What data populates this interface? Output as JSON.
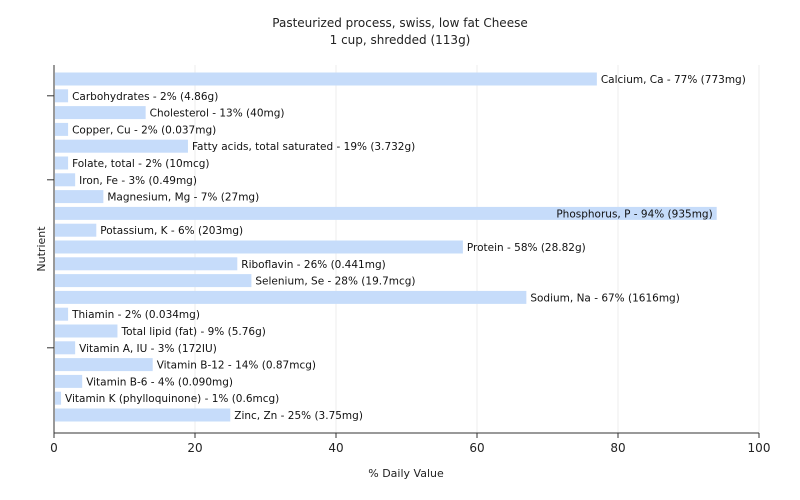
{
  "chart_data": {
    "type": "bar",
    "orientation": "horizontal",
    "title": "Pasteurized process, swiss, low fat Cheese",
    "subtitle": "1 cup, shredded (113g)",
    "xlabel": "% Daily Value",
    "ylabel": "Nutrient",
    "xlim": [
      0,
      100
    ],
    "xticks": [
      "0",
      "20",
      "40",
      "60",
      "80",
      "100"
    ],
    "grid": true,
    "bar_color": "#c6dcfa",
    "categories": [
      "Calcium, Ca - 77% (773mg)",
      "Carbohydrates - 2% (4.86g)",
      "Cholesterol - 13% (40mg)",
      "Copper, Cu - 2% (0.037mg)",
      "Fatty acids, total saturated - 19% (3.732g)",
      "Folate, total - 2% (10mcg)",
      "Iron, Fe - 3% (0.49mg)",
      "Magnesium, Mg - 7% (27mg)",
      "Phosphorus, P - 94% (935mg)",
      "Potassium, K - 6% (203mg)",
      "Protein - 58% (28.82g)",
      "Riboflavin - 26% (0.441mg)",
      "Selenium, Se - 28% (19.7mcg)",
      "Sodium, Na - 67% (1616mg)",
      "Thiamin - 2% (0.034mg)",
      "Total lipid (fat) - 9% (5.76g)",
      "Vitamin A, IU - 3% (172IU)",
      "Vitamin B-12 - 14% (0.87mcg)",
      "Vitamin B-6 - 4% (0.090mg)",
      "Vitamin K (phylloquinone) - 1% (0.6mcg)",
      "Zinc, Zn - 25% (3.75mg)"
    ],
    "values": [
      77,
      2,
      13,
      2,
      19,
      2,
      3,
      7,
      94,
      6,
      58,
      26,
      28,
      67,
      2,
      9,
      3,
      14,
      4,
      1,
      25
    ]
  }
}
